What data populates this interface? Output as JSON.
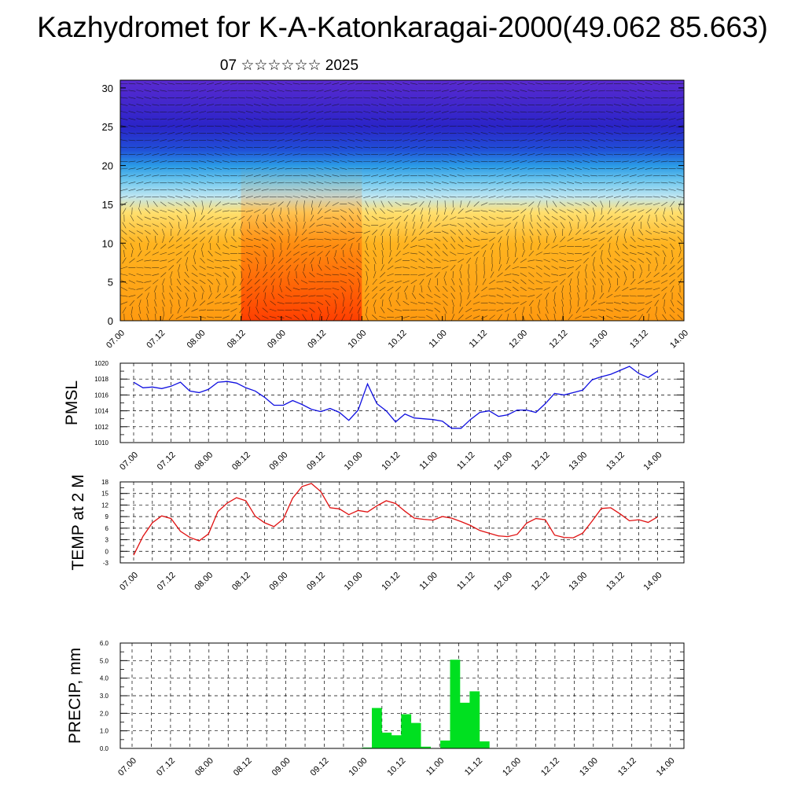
{
  "header": {
    "title": "Kazhydromet for K-A-Katonkaragai-2000(49.062 85.663)",
    "subtitle": "07 ☆☆☆☆☆☆ 2025"
  },
  "chart_data": [
    {
      "type": "heatmap",
      "title": "",
      "xlabel": "",
      "ylabel": "",
      "x_tick_labels": [
        "07.00",
        "07.12",
        "08.00",
        "08.12",
        "09.00",
        "09.12",
        "10.00",
        "10.12",
        "11.00",
        "11.12",
        "12.00",
        "12.12",
        "13.00",
        "13.12",
        "14.00"
      ],
      "y_ticks": [
        0,
        5,
        10,
        15,
        20,
        25,
        30
      ],
      "ylim": [
        0,
        31
      ],
      "grid": false,
      "wind_vectors": true,
      "color_levels": [
        {
          "level": 0,
          "color": "#ff9a10"
        },
        {
          "level": 10,
          "color": "#ffb420"
        },
        {
          "level": 14,
          "color": "#ffe070"
        },
        {
          "level": 16,
          "color": "#bfe6f2"
        },
        {
          "level": 18,
          "color": "#70c8ee"
        },
        {
          "level": 20,
          "color": "#2a9ae6"
        },
        {
          "level": 22,
          "color": "#2050d8"
        },
        {
          "level": 25,
          "color": "#2a24c8"
        },
        {
          "level": 31,
          "color": "#5a2ad0"
        }
      ],
      "warm_core": {
        "x_from": "08.12",
        "x_to": "10.00",
        "color": "#ff4a00"
      }
    },
    {
      "type": "line",
      "title": "",
      "xlabel": "",
      "ylabel": "PMSL",
      "x_tick_labels": [
        "07.00",
        "07.12",
        "08.00",
        "08.12",
        "09.00",
        "09.12",
        "10.00",
        "10.12",
        "11.00",
        "11.12",
        "12.00",
        "12.12",
        "13.00",
        "13.12",
        "14.00"
      ],
      "y_tick_labels": [
        "1010",
        "1012",
        "1014",
        "1016",
        "1018",
        "1020"
      ],
      "ylim": [
        1010,
        1020
      ],
      "grid": true,
      "color": "#1010e0",
      "series": [
        {
          "values": [
            1017.6,
            1016.9,
            1017.0,
            1016.8,
            1017.1,
            1017.6,
            1016.5,
            1016.3,
            1016.7,
            1017.6,
            1017.7,
            1017.5,
            1016.9,
            1016.5,
            1015.7,
            1014.7,
            1014.7,
            1015.3,
            1014.8,
            1014.2,
            1013.9,
            1014.3,
            1013.8,
            1012.8,
            1014.1,
            1017.4,
            1014.9,
            1014.0,
            1012.6,
            1013.6,
            1013.1,
            1013.0,
            1012.9,
            1012.7,
            1011.8,
            1011.8,
            1012.9,
            1013.8,
            1014.0,
            1013.3,
            1013.5,
            1014.1,
            1014.1,
            1013.8,
            1014.9,
            1016.2,
            1016.0,
            1016.3,
            1016.6,
            1017.9,
            1018.3,
            1018.6,
            1019.1,
            1019.6,
            1018.7,
            1018.2,
            1019.0
          ]
        }
      ]
    },
    {
      "type": "line",
      "title": "",
      "xlabel": "",
      "ylabel": "TEMP at 2 M",
      "x_tick_labels": [
        "07.00",
        "07.12",
        "08.00",
        "08.12",
        "09.00",
        "09.12",
        "10.00",
        "10.12",
        "11.00",
        "11.12",
        "12.00",
        "12.12",
        "13.00",
        "13.12",
        "14.00"
      ],
      "y_tick_labels": [
        "-3",
        "0",
        "3",
        "6",
        "9",
        "12",
        "15",
        "18"
      ],
      "ylim": [
        -3,
        18
      ],
      "grid": true,
      "color": "#e01010",
      "series": [
        {
          "values": [
            -1.0,
            3.9,
            7.4,
            9.2,
            8.5,
            5.2,
            3.6,
            2.7,
            4.5,
            10.3,
            12.5,
            13.9,
            13.1,
            9.1,
            7.4,
            6.4,
            8.4,
            13.8,
            16.8,
            17.6,
            15.5,
            11.3,
            11.0,
            9.5,
            10.6,
            10.2,
            11.8,
            13.1,
            12.4,
            10.4,
            8.6,
            8.3,
            8.1,
            9.0,
            8.6,
            7.7,
            6.7,
            5.4,
            4.7,
            4.0,
            3.8,
            4.4,
            7.3,
            8.5,
            8.2,
            4.2,
            3.6,
            3.5,
            4.7,
            7.8,
            11.1,
            11.3,
            9.7,
            7.9,
            8.2,
            7.5,
            8.9
          ]
        }
      ]
    },
    {
      "type": "bar",
      "title": "",
      "xlabel": "",
      "ylabel": "PRECIP, mm",
      "x_tick_labels": [
        "07.00",
        "07.12",
        "08.00",
        "08.12",
        "09.00",
        "09.12",
        "10.00",
        "10.12",
        "11.00",
        "11.12",
        "12.00",
        "12.12",
        "13.00",
        "13.12",
        "14.00"
      ],
      "y_tick_labels": [
        "0.0",
        "1.0",
        "2.0",
        "3.0",
        "4.0",
        "5.0",
        "6.0"
      ],
      "ylim": [
        0,
        6
      ],
      "grid": true,
      "color": "#00e020",
      "series": [
        {
          "values": [
            0,
            0,
            0,
            0,
            0,
            0,
            0,
            0,
            0,
            0,
            0,
            0,
            0,
            0,
            0,
            0,
            0,
            0,
            0,
            0,
            0,
            0,
            0,
            0,
            0.05,
            2.3,
            0.9,
            0.75,
            1.95,
            1.45,
            0.1,
            0,
            0.45,
            5.05,
            2.6,
            3.25,
            0.4,
            0,
            0,
            0,
            0,
            0,
            0,
            0,
            0,
            0,
            0,
            0,
            0,
            0,
            0,
            0,
            0,
            0,
            0,
            0
          ]
        }
      ]
    }
  ]
}
